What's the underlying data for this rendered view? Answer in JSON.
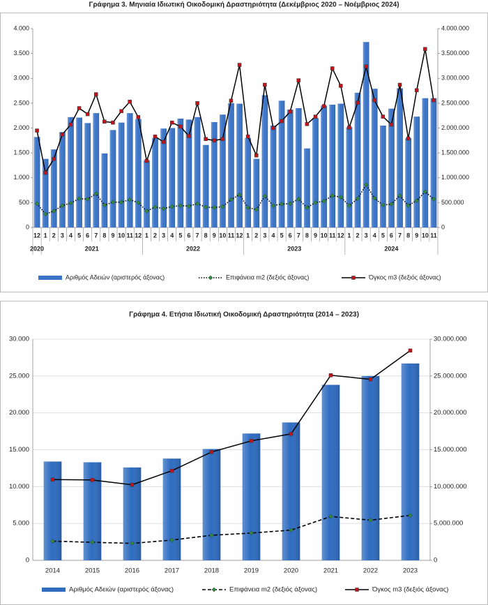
{
  "chart_data": [
    {
      "type": "bar_line",
      "title": "Γράφημα 3. Μηνιαία Ιδιωτική Οικοδομική Δραστηριότητα (Δεκέμβριος 2020 – Νοέμβριος 2024)",
      "categories": [
        "12",
        "1",
        "2",
        "3",
        "4",
        "5",
        "6",
        "7",
        "8",
        "9",
        "10",
        "11",
        "12",
        "1",
        "2",
        "3",
        "4",
        "5",
        "6",
        "7",
        "8",
        "9",
        "10",
        "11",
        "12",
        "1",
        "2",
        "3",
        "4",
        "5",
        "6",
        "7",
        "8",
        "9",
        "10",
        "11",
        "12",
        "1",
        "2",
        "3",
        "4",
        "5",
        "6",
        "7",
        "8",
        "9",
        "10",
        "11"
      ],
      "years": [
        "2020",
        "2021",
        "2022",
        "2023",
        "2024"
      ],
      "ylim": [
        0,
        4000
      ],
      "yticks": [
        0,
        500,
        {
          "value": 1000,
          "label": "1.000"
        },
        {
          "value": 1500,
          "label": "1.500"
        },
        {
          "value": 2000,
          "label": "2.000"
        },
        {
          "value": 2500,
          "label": "2.500"
        },
        {
          "value": 3000,
          "label": "3.000"
        },
        {
          "value": 3500,
          "label": "3.500"
        },
        {
          "value": 4000,
          "label": "4.000"
        }
      ],
      "y2lim": [
        0,
        4000000
      ],
      "y2ticks": [
        0,
        {
          "value": 500000,
          "label": "500.000"
        },
        {
          "value": 1000000,
          "label": "1.000.000"
        },
        {
          "value": 1500000,
          "label": "1.500.000"
        },
        {
          "value": 2000000,
          "label": "2.000.000"
        },
        {
          "value": 2500000,
          "label": "2.500.000"
        },
        {
          "value": 3000000,
          "label": "3.000.000"
        },
        {
          "value": 3500000,
          "label": "3.500.000"
        },
        {
          "value": 4000000,
          "label": "4.000.000"
        }
      ],
      "grid": false,
      "series": [
        {
          "name": "Αριθμός Αδειών (αριστερός άξονας)",
          "kind": "bar",
          "color": "#3a74c8",
          "values": [
            1820,
            1380,
            1570,
            1920,
            2220,
            2210,
            2100,
            2300,
            1490,
            1960,
            2110,
            2300,
            2180,
            1350,
            1800,
            1990,
            2000,
            2190,
            2170,
            2220,
            1660,
            2120,
            2270,
            2500,
            2490,
            1800,
            1380,
            2660,
            2050,
            2550,
            2370,
            2400,
            1590,
            2200,
            2450,
            2470,
            2490,
            2020,
            2710,
            3730,
            2790,
            2050,
            2390,
            2800,
            1800,
            2230,
            2600,
            2600
          ]
        },
        {
          "name": "Επιφάνεια m2 (δεξιός άξονας)",
          "kind": "line",
          "axis": "y2",
          "color": "#000000",
          "line_style": "dotted",
          "marker": "diamond",
          "marker_color": "#2e8b3a",
          "values": [
            480000,
            270000,
            330000,
            440000,
            490000,
            580000,
            570000,
            680000,
            450000,
            510000,
            510000,
            560000,
            500000,
            330000,
            410000,
            380000,
            420000,
            440000,
            430000,
            480000,
            410000,
            400000,
            420000,
            560000,
            660000,
            400000,
            360000,
            630000,
            440000,
            470000,
            480000,
            570000,
            400000,
            500000,
            530000,
            640000,
            610000,
            440000,
            580000,
            860000,
            590000,
            450000,
            470000,
            640000,
            440000,
            540000,
            720000,
            570000
          ]
        },
        {
          "name": "Όγκος m3 (δεξιός άξονας)",
          "kind": "line",
          "axis": "y2",
          "color": "#000000",
          "line_style": "solid",
          "marker": "square",
          "marker_color": "#c0141c",
          "values": [
            1950000,
            1100000,
            1380000,
            1870000,
            2070000,
            2400000,
            2280000,
            2680000,
            2130000,
            2110000,
            2340000,
            2530000,
            2220000,
            1340000,
            1830000,
            1720000,
            2110000,
            2030000,
            1840000,
            2500000,
            1780000,
            1750000,
            1780000,
            2550000,
            3270000,
            1830000,
            1450000,
            2870000,
            2000000,
            2140000,
            2330000,
            2960000,
            2080000,
            2230000,
            2440000,
            3200000,
            2850000,
            2010000,
            2510000,
            3240000,
            2560000,
            2230000,
            2070000,
            2870000,
            1790000,
            2760000,
            3590000,
            2560000
          ]
        }
      ]
    },
    {
      "type": "bar_line",
      "title": "Γράφημα 4. Ετήσια Ιδιωτική Οικοδομική Δραστηριότητα (2014 – 2023)",
      "categories": [
        "2014",
        "2015",
        "2016",
        "2017",
        "2018",
        "2019",
        "2020",
        "2021",
        "2022",
        "2023"
      ],
      "ylim": [
        0,
        30000
      ],
      "yticks": [
        0,
        {
          "value": 5000,
          "label": "5.000"
        },
        {
          "value": 10000,
          "label": "10.000"
        },
        {
          "value": 15000,
          "label": "15.000"
        },
        {
          "value": 20000,
          "label": "20.000"
        },
        {
          "value": 25000,
          "label": "25.000"
        },
        {
          "value": 30000,
          "label": "30.000"
        }
      ],
      "y2lim": [
        0,
        30000000
      ],
      "y2ticks": [
        0,
        {
          "value": 5000000,
          "label": "5.000.000"
        },
        {
          "value": 10000000,
          "label": "10.000.000"
        },
        {
          "value": 15000000,
          "label": "15.000.000"
        },
        {
          "value": 20000000,
          "label": "20.000.000"
        },
        {
          "value": 25000000,
          "label": "25.000.000"
        },
        {
          "value": 30000000,
          "label": "30.000.000"
        }
      ],
      "grid": true,
      "series": [
        {
          "name": "Αριθμός Αδειών (αριστερός άξονας)",
          "kind": "bar",
          "color": "#2f6cc0",
          "values": [
            13400,
            13300,
            12600,
            13800,
            15100,
            17200,
            18700,
            23800,
            25000,
            26700
          ]
        },
        {
          "name": "Επιφάνεια m2 (δεξιός άξονας)",
          "kind": "line",
          "axis": "y2",
          "color": "#000000",
          "line_style": "dashed",
          "marker": "diamond",
          "marker_color": "#2e8b3a",
          "values": [
            2600000,
            2450000,
            2300000,
            2750000,
            3400000,
            3700000,
            4100000,
            5950000,
            5450000,
            6100000
          ]
        },
        {
          "name": "Όγκος m3 (δεξιός άξονας)",
          "kind": "line",
          "axis": "y2",
          "color": "#000000",
          "line_style": "solid",
          "marker": "square",
          "marker_color": "#c0141c",
          "values": [
            10950000,
            10900000,
            10250000,
            12150000,
            14700000,
            16200000,
            17150000,
            25100000,
            24550000,
            28450000
          ]
        }
      ]
    }
  ]
}
